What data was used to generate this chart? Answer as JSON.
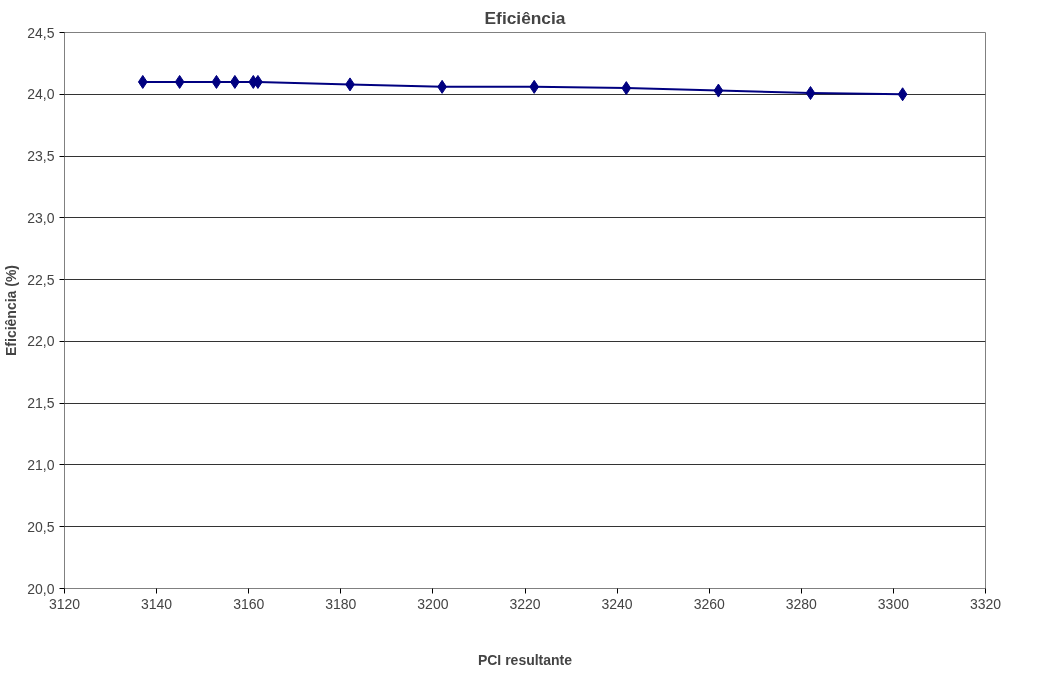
{
  "chart_data": {
    "type": "line",
    "title": "Eficiência",
    "xlabel": "PCI resultante",
    "ylabel": "Eficiência (%)",
    "x": [
      3137,
      3145,
      3153,
      3157,
      3161,
      3162,
      3182,
      3202,
      3222,
      3242,
      3262,
      3282,
      3302
    ],
    "series": [
      {
        "color": "#000080",
        "values": [
          24.1,
          24.1,
          24.1,
          24.1,
          24.1,
          24.1,
          24.08,
          24.06,
          24.06,
          24.05,
          24.03,
          24.01,
          24.0
        ]
      }
    ],
    "xlim": [
      3120,
      3320
    ],
    "xticks": [
      3120,
      3140,
      3160,
      3180,
      3200,
      3220,
      3240,
      3260,
      3280,
      3300,
      3320
    ],
    "ylim": [
      20,
      24.5
    ],
    "yticks": [
      {
        "value": 20,
        "label": "20,0"
      },
      {
        "value": 20.5,
        "label": "20,5"
      },
      {
        "value": 21,
        "label": "21,0"
      },
      {
        "value": 21.5,
        "label": "21,5"
      },
      {
        "value": 22,
        "label": "22,0"
      },
      {
        "value": 22.5,
        "label": "22,5"
      },
      {
        "value": 23,
        "label": "23,0"
      },
      {
        "value": 23.5,
        "label": "23,5"
      },
      {
        "value": 24,
        "label": "24,0"
      },
      {
        "value": 24.5,
        "label": "24,5"
      }
    ],
    "grid": "y",
    "marker": "diamond",
    "line_style": "solid"
  }
}
